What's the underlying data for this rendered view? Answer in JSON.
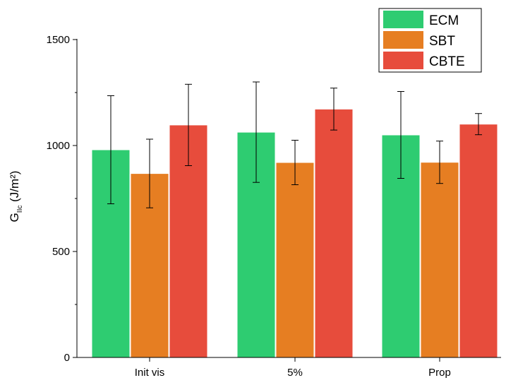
{
  "chart_data": {
    "type": "bar",
    "categories": [
      "Init vis",
      "5%",
      "Prop"
    ],
    "series": [
      {
        "name": "ECM",
        "color": "#2ecc71",
        "values": [
          980,
          1063,
          1050
        ],
        "errors": [
          255,
          237,
          205
        ]
      },
      {
        "name": "SBT",
        "color": "#e67e22",
        "values": [
          868,
          920,
          921
        ],
        "errors": [
          162,
          105,
          100
        ]
      },
      {
        "name": "CBTE",
        "color": "#e74c3c",
        "values": [
          1097,
          1172,
          1101
        ],
        "errors": [
          192,
          99,
          50
        ]
      }
    ],
    "y_axis": {
      "label_main": "G",
      "label_sub": "IIc",
      "label_unit": " (J/m²)",
      "ylim": [
        0,
        1500
      ],
      "ticks": [
        "0",
        "500",
        "1000",
        "1500"
      ],
      "tick_values": [
        0,
        500,
        1000,
        1500
      ]
    },
    "legend_position": "top-right",
    "grid": false
  }
}
